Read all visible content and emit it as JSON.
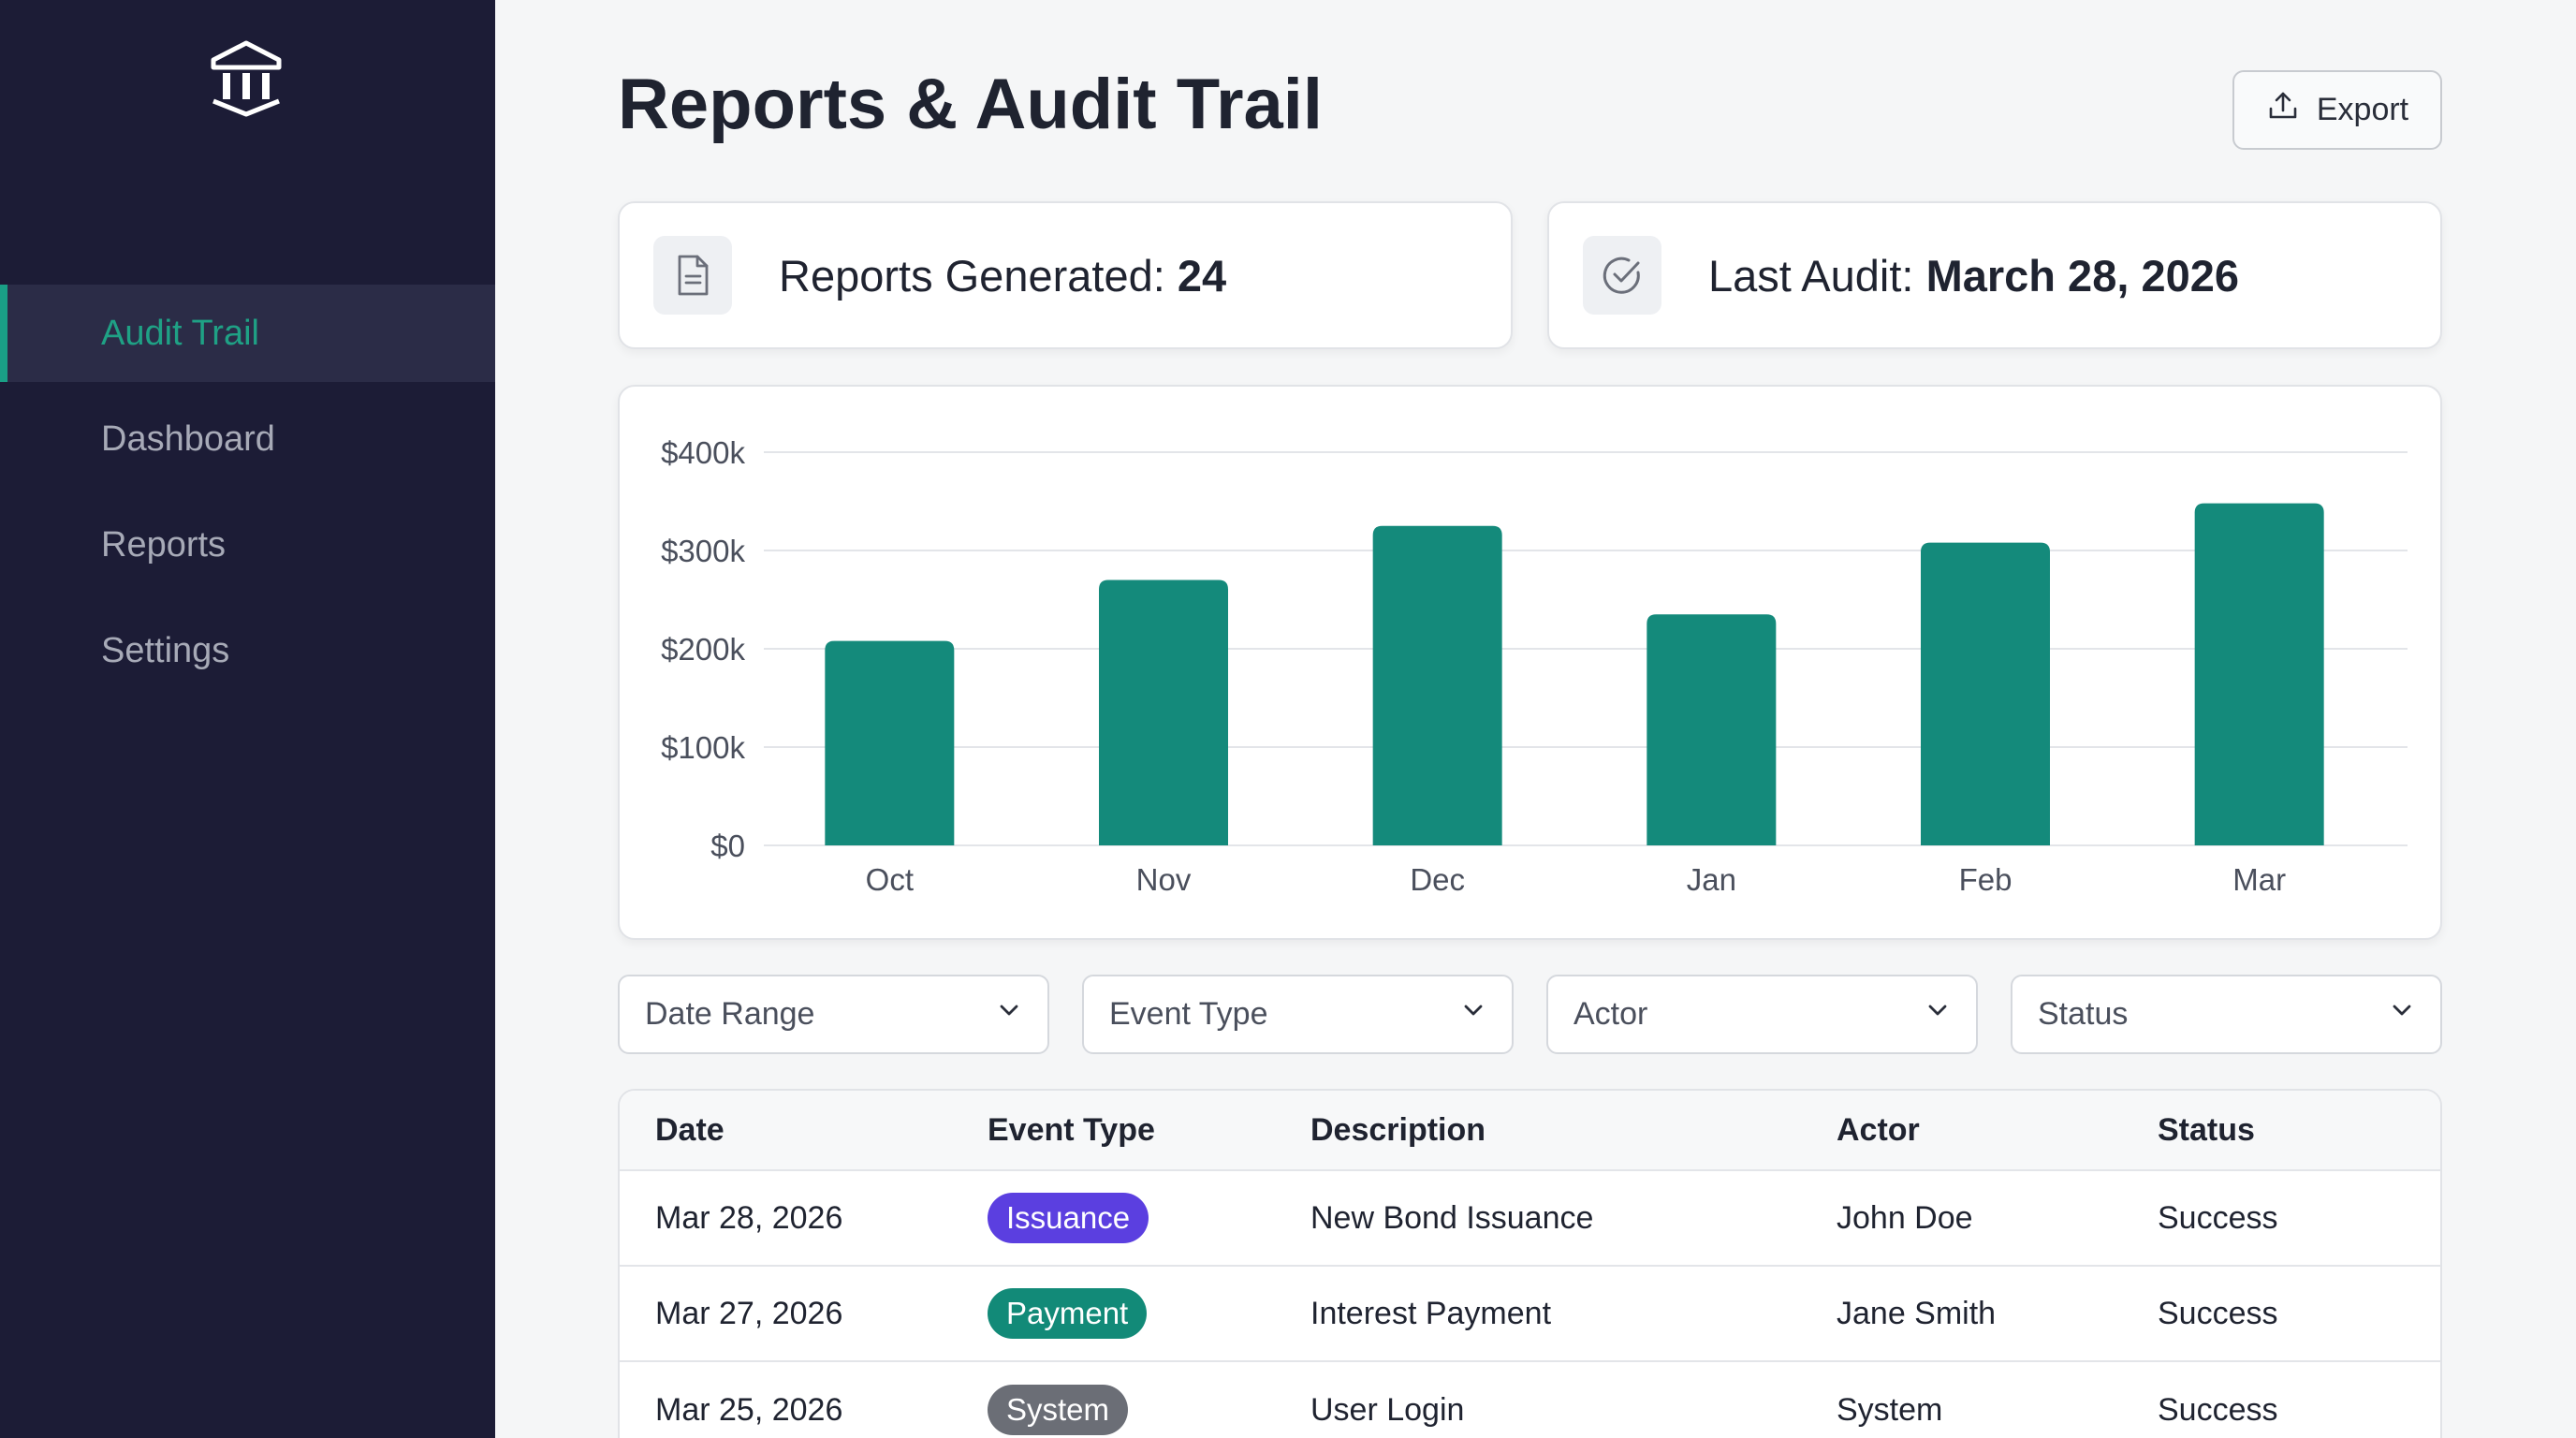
{
  "sidebar": {
    "logo_icon": "bank-building-icon",
    "items": [
      {
        "label": "Audit Trail",
        "active": true
      },
      {
        "label": "Dashboard",
        "active": false
      },
      {
        "label": "Reports",
        "active": false
      },
      {
        "label": "Settings",
        "active": false
      }
    ]
  },
  "header": {
    "title": "Reports & Audit Trail",
    "export_label": "Export",
    "export_icon": "upload-icon"
  },
  "stats": {
    "reports": {
      "label": "Reports Generated:",
      "value": "24",
      "icon": "document-icon"
    },
    "audit": {
      "label": "Last Audit:",
      "value": "March 28, 2026",
      "icon": "check-circle-icon"
    }
  },
  "chart_data": {
    "type": "bar",
    "categories": [
      "Oct",
      "Nov",
      "Dec",
      "Jan",
      "Feb",
      "Mar"
    ],
    "values": [
      208000,
      270000,
      325000,
      235000,
      308000,
      348000
    ],
    "ylim": [
      0,
      400000
    ],
    "yticks": [
      0,
      100000,
      200000,
      300000,
      400000
    ],
    "ytick_labels": [
      "$0",
      "$100k",
      "$200k",
      "$300k",
      "$400k"
    ],
    "grid": true,
    "bar_color": "#148a7b"
  },
  "filters": [
    {
      "label": "Date Range"
    },
    {
      "label": "Event Type"
    },
    {
      "label": "Actor"
    },
    {
      "label": "Status"
    }
  ],
  "table": {
    "columns": [
      "Date",
      "Event Type",
      "Description",
      "Actor",
      "Status"
    ],
    "rows": [
      {
        "date": "Mar 28, 2026",
        "event": "Issuance",
        "event_color": "#5b3fe0",
        "description": "New Bond Issuance",
        "actor": "John Doe",
        "status": "Success"
      },
      {
        "date": "Mar 27, 2026",
        "event": "Payment",
        "event_color": "#128a78",
        "description": "Interest Payment",
        "actor": "Jane Smith",
        "status": "Success"
      },
      {
        "date": "Mar 25, 2026",
        "event": "System",
        "event_color": "#6b6e76",
        "description": "User Login",
        "actor": "System",
        "status": "Success"
      }
    ]
  }
}
